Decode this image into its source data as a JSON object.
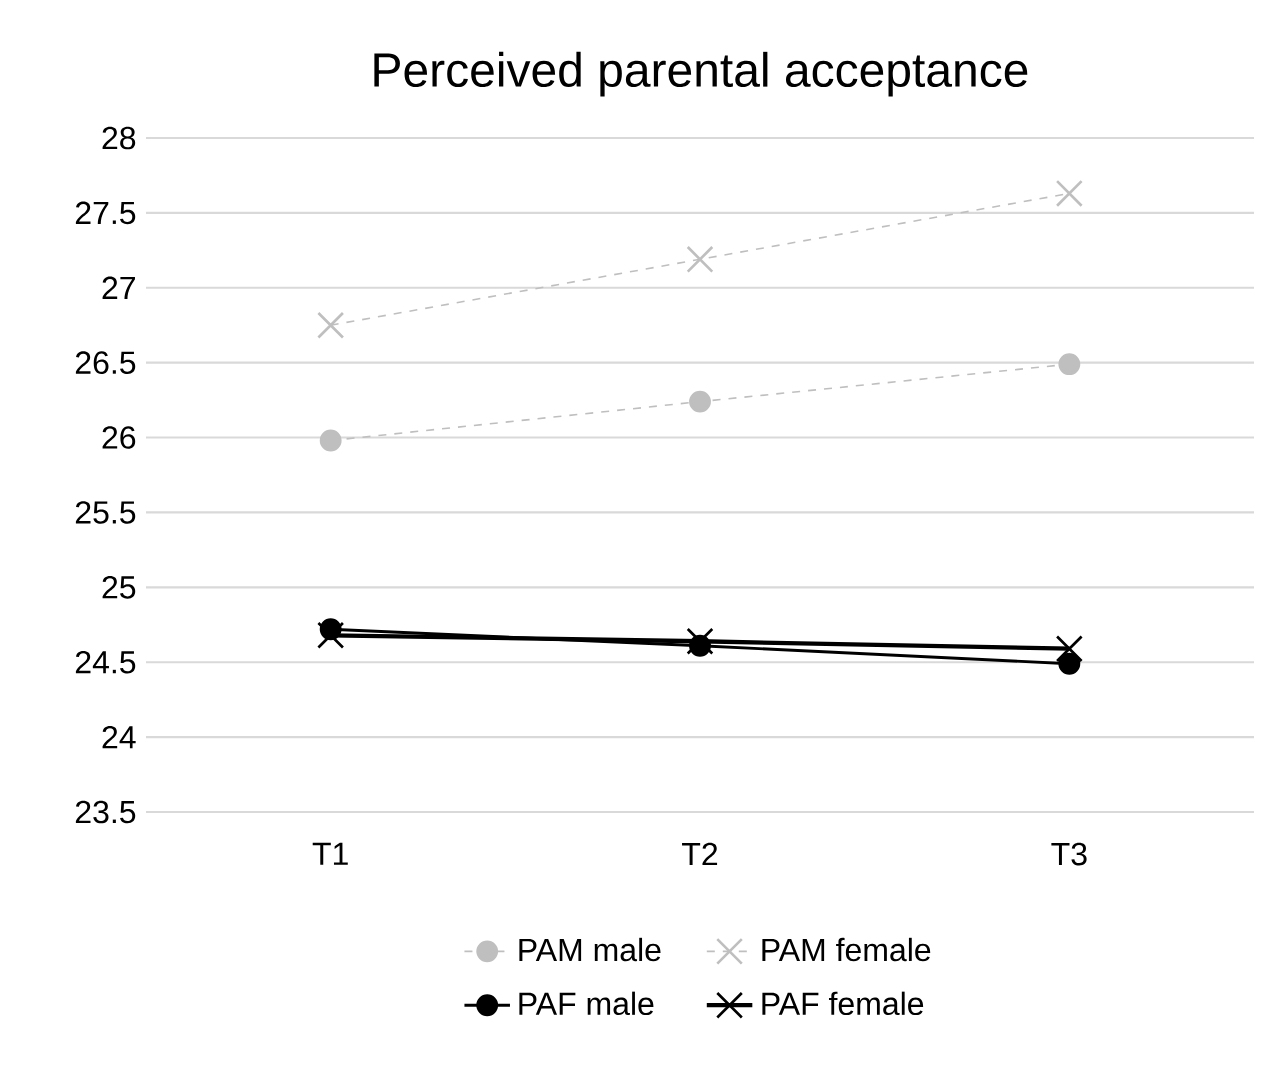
{
  "chart_data": {
    "type": "line",
    "title": "Perceived parental acceptance",
    "categories": [
      "T1",
      "T2",
      "T3"
    ],
    "series": [
      {
        "name": "PAM male",
        "color": "#bfbfbf",
        "values": [
          25.98,
          26.24,
          26.49
        ],
        "marker": "circle",
        "line_style": "dashed"
      },
      {
        "name": "PAM female",
        "color": "#bfbfbf",
        "values": [
          26.75,
          27.19,
          27.63
        ],
        "marker": "cross",
        "line_style": "dashed"
      },
      {
        "name": "PAF male",
        "color": "#000000",
        "values": [
          24.72,
          24.61,
          24.49
        ],
        "marker": "circle",
        "line_style": "solid"
      },
      {
        "name": "PAF female",
        "color": "#000000",
        "values": [
          24.68,
          24.64,
          24.59
        ],
        "marker": "cross",
        "line_style": "solid"
      }
    ],
    "ylim": [
      23.5,
      28
    ],
    "yticks": [
      23.5,
      24,
      24.5,
      25,
      25.5,
      26,
      26.5,
      27,
      27.5,
      28
    ],
    "grid": "y",
    "legend": "bottom"
  }
}
